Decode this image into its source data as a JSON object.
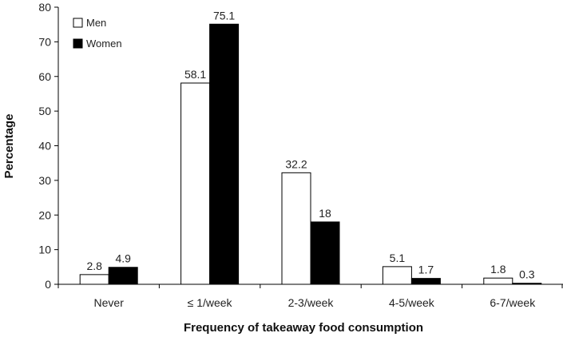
{
  "chart_data": {
    "type": "bar",
    "categories": [
      "Never",
      "≤ 1/week",
      "2-3/week",
      "4-5/week",
      "6-7/week"
    ],
    "series": [
      {
        "name": "Men",
        "values": [
          2.8,
          58.1,
          32.2,
          5.1,
          1.8
        ],
        "labels": [
          "2.8",
          "58.1",
          "32.2",
          "5.1",
          "1.8"
        ],
        "color": "#ffffff"
      },
      {
        "name": "Women",
        "values": [
          4.9,
          75.1,
          18,
          1.7,
          0.3
        ],
        "labels": [
          "4.9",
          "75.1",
          "18",
          "1.7",
          "0.3"
        ],
        "color": "#000000"
      }
    ],
    "xlabel": "Frequency of takeaway food consumption",
    "ylabel": "Percentage",
    "ylim": [
      0,
      80
    ],
    "yticks": [
      "0",
      "10",
      "20",
      "30",
      "40",
      "50",
      "60",
      "70",
      "80"
    ],
    "legend": "top-left",
    "grid": false
  }
}
